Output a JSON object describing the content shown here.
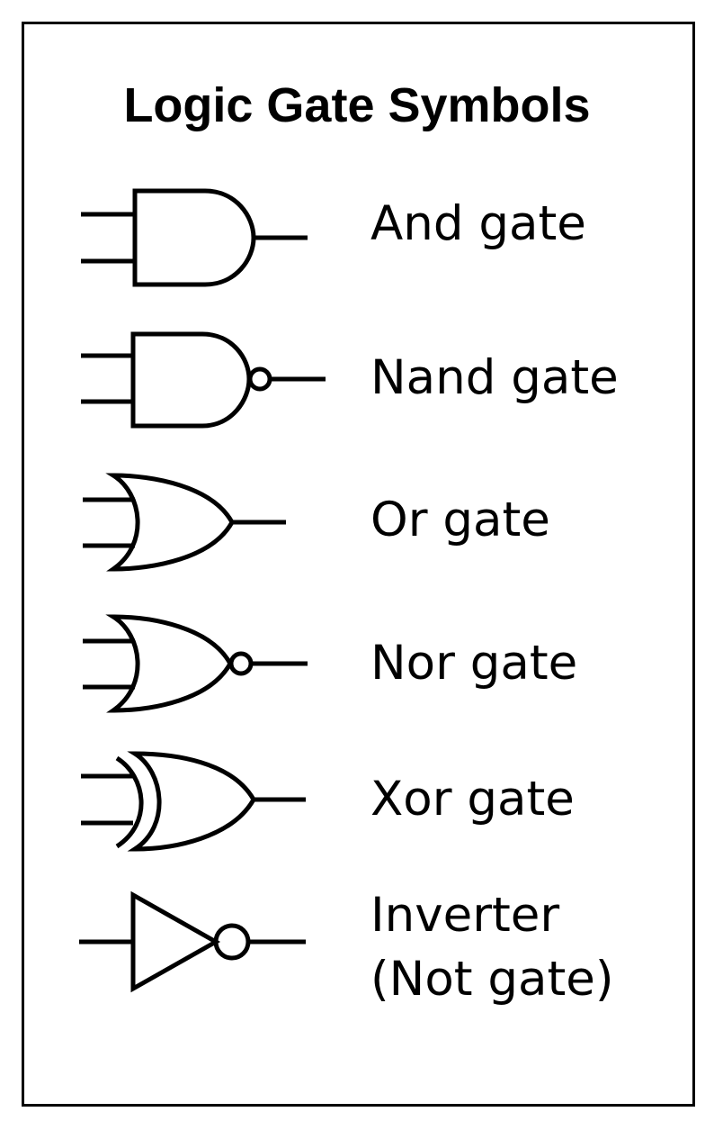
{
  "title": "Logic Gate Symbols",
  "gates": [
    {
      "symbol": "and-gate",
      "label": "And gate"
    },
    {
      "symbol": "nand-gate",
      "label": "Nand gate"
    },
    {
      "symbol": "or-gate",
      "label": "Or gate"
    },
    {
      "symbol": "nor-gate",
      "label": "Nor gate"
    },
    {
      "symbol": "xor-gate",
      "label": "Xor gate"
    },
    {
      "symbol": "not-gate",
      "label_line1": "Inverter",
      "label_line2": "(Not gate)"
    }
  ]
}
